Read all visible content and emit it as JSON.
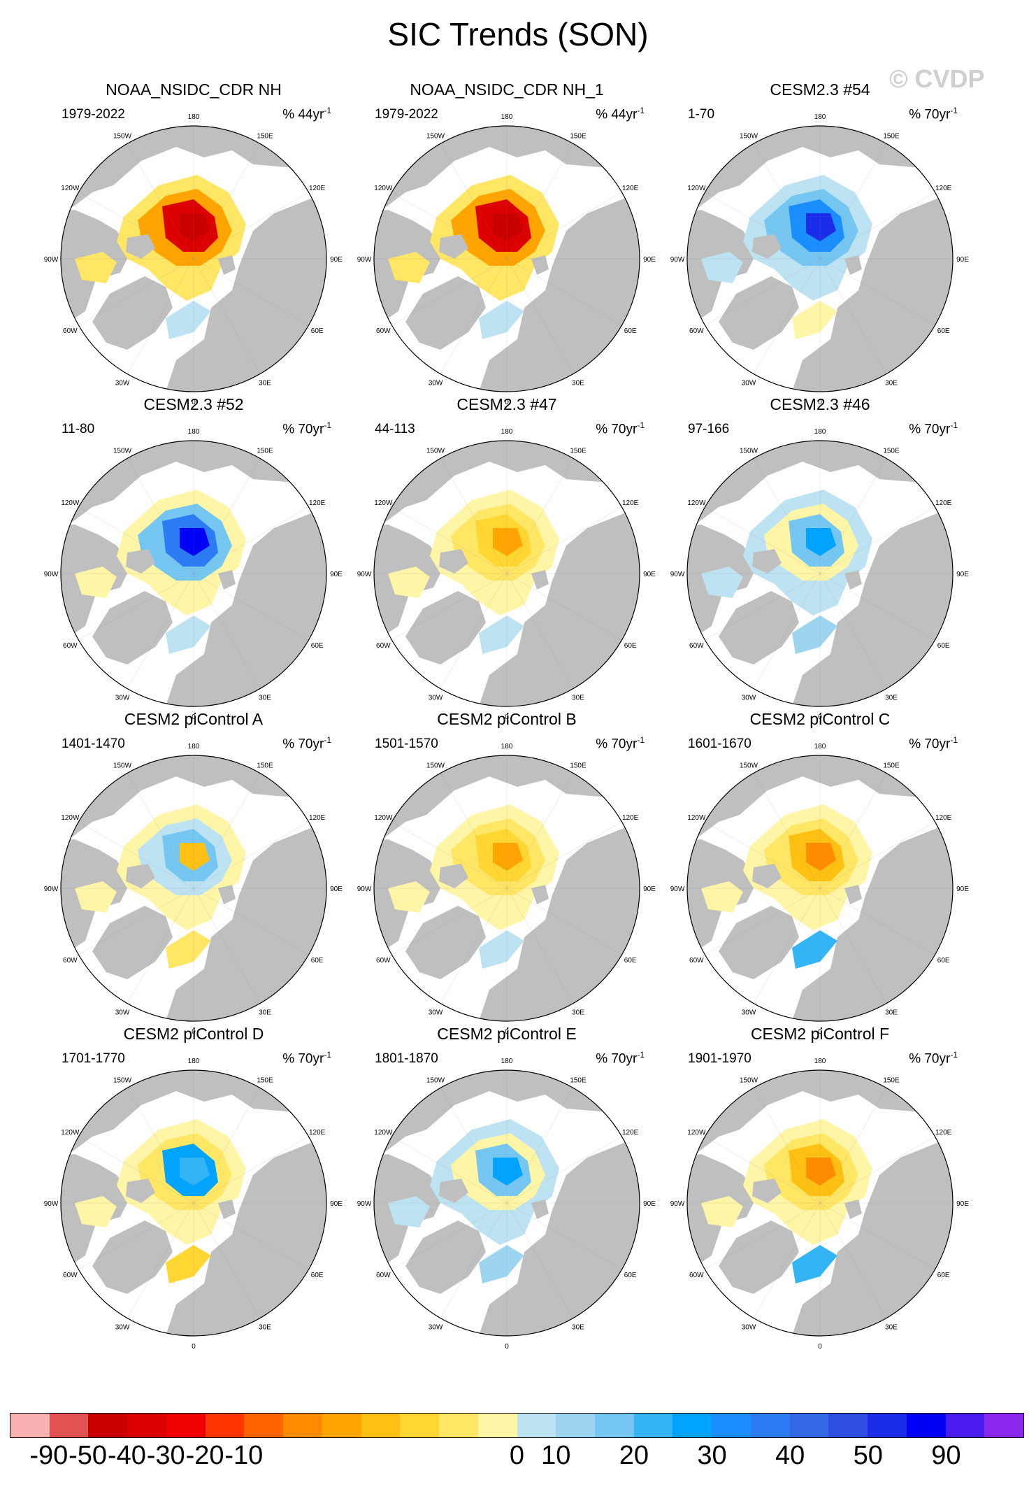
{
  "title": "SIC Trends (SON)",
  "watermark": "© CVDP",
  "panels": [
    {
      "title": "NOAA_NSIDC_CDR NH",
      "period": "1979-2022",
      "units": "% 44yr",
      "units_exp": "-1",
      "pattern": "obs"
    },
    {
      "title": "NOAA_NSIDC_CDR NH_1",
      "period": "1979-2022",
      "units": "% 44yr",
      "units_exp": "-1",
      "pattern": "obs"
    },
    {
      "title": "CESM2.3 #54",
      "period": "1-70",
      "units": "% 70yr",
      "units_exp": "-1",
      "pattern": "blue"
    },
    {
      "title": "CESM2.3 #52",
      "period": "11-80",
      "units": "% 70yr",
      "units_exp": "-1",
      "pattern": "blue2"
    },
    {
      "title": "CESM2.3 #47",
      "period": "44-113",
      "units": "% 70yr",
      "units_exp": "-1",
      "pattern": "yellow"
    },
    {
      "title": "CESM2.3 #46",
      "period": "97-166",
      "units": "% 70yr",
      "units_exp": "-1",
      "pattern": "lightblue"
    },
    {
      "title": "CESM2 piControl A",
      "period": "1401-1470",
      "units": "% 70yr",
      "units_exp": "-1",
      "pattern": "mixA"
    },
    {
      "title": "CESM2 piControl B",
      "period": "1501-1570",
      "units": "% 70yr",
      "units_exp": "-1",
      "pattern": "yellow"
    },
    {
      "title": "CESM2 piControl C",
      "period": "1601-1670",
      "units": "% 70yr",
      "units_exp": "-1",
      "pattern": "orange"
    },
    {
      "title": "CESM2 piControl D",
      "period": "1701-1770",
      "units": "% 70yr",
      "units_exp": "-1",
      "pattern": "mixD"
    },
    {
      "title": "CESM2 piControl E",
      "period": "1801-1870",
      "units": "% 70yr",
      "units_exp": "-1",
      "pattern": "lightblue"
    },
    {
      "title": "CESM2 piControl F",
      "period": "1901-1970",
      "units": "% 70yr",
      "units_exp": "-1",
      "pattern": "orange"
    }
  ],
  "longitude_labels": [
    "180",
    "150E",
    "120E",
    "90E",
    "60E",
    "30E",
    "0",
    "30W",
    "60W",
    "90W",
    "120W",
    "150W"
  ],
  "chart_data": {
    "type": "heatmap",
    "title": "SIC Trends (SON)",
    "projection": "north polar stereographic",
    "variable": "Sea ice concentration trend",
    "units": "%",
    "colorbar": {
      "levels": [
        -90,
        -50,
        -40,
        -30,
        -20,
        -10,
        0,
        10,
        20,
        30,
        40,
        50,
        90
      ],
      "labels": [
        "-90",
        "-50",
        "-40",
        "-30",
        "-20",
        "-10",
        "0",
        "10",
        "20",
        "30",
        "40",
        "50",
        "90"
      ],
      "colors": [
        "#fab1b1",
        "#e25252",
        "#c80000",
        "#dc0000",
        "#f00000",
        "#ff3500",
        "#ff6400",
        "#ff8c00",
        "#ffa400",
        "#ffc014",
        "#ffd632",
        "#ffe664",
        "#fff5a6",
        "#bde3f3",
        "#9dd5f0",
        "#75c7f2",
        "#33b5f5",
        "#00a4ff",
        "#1a8eff",
        "#2b7bf5",
        "#3368e5",
        "#2f4de0",
        "#1b2de8",
        "#0000f5",
        "#4a1cf0",
        "#8a28f0"
      ]
    },
    "land_color": "#bfbfbf",
    "ocean_color": "#ffffff"
  }
}
